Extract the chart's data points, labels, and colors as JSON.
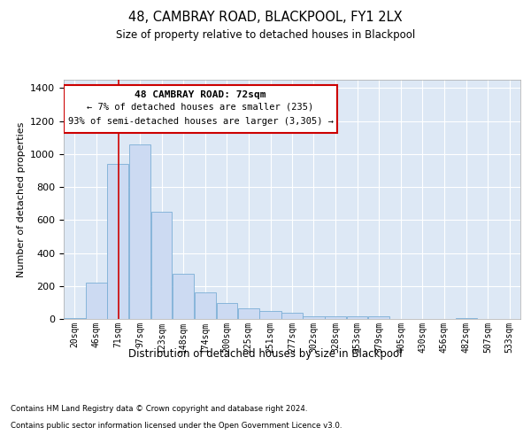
{
  "title1": "48, CAMBRAY ROAD, BLACKPOOL, FY1 2LX",
  "title2": "Size of property relative to detached houses in Blackpool",
  "xlabel": "Distribution of detached houses by size in Blackpool",
  "ylabel": "Number of detached properties",
  "footnote1": "Contains HM Land Registry data © Crown copyright and database right 2024.",
  "footnote2": "Contains public sector information licensed under the Open Government Licence v3.0.",
  "annotation_title": "48 CAMBRAY ROAD: 72sqm",
  "annotation_line2": "← 7% of detached houses are smaller (235)",
  "annotation_line3": "93% of semi-detached houses are larger (3,305) →",
  "bar_color": "#ccdaf2",
  "bar_edge_color": "#7baed6",
  "vline_color": "#cc0000",
  "background_color": "#dde8f5",
  "categories": [
    "20sqm",
    "46sqm",
    "71sqm",
    "97sqm",
    "123sqm",
    "148sqm",
    "174sqm",
    "200sqm",
    "225sqm",
    "251sqm",
    "277sqm",
    "302sqm",
    "328sqm",
    "353sqm",
    "379sqm",
    "405sqm",
    "430sqm",
    "456sqm",
    "482sqm",
    "507sqm",
    "533sqm"
  ],
  "bin_edges": [
    7,
    33,
    58,
    84,
    110,
    135,
    161,
    187,
    212,
    238,
    264,
    289,
    315,
    341,
    366,
    392,
    418,
    443,
    469,
    495,
    520,
    546
  ],
  "values": [
    5,
    220,
    940,
    1060,
    650,
    275,
    160,
    95,
    65,
    50,
    35,
    15,
    15,
    15,
    15,
    0,
    0,
    0,
    5,
    0,
    0
  ],
  "ylim": [
    0,
    1450
  ],
  "yticks": [
    0,
    200,
    400,
    600,
    800,
    1000,
    1200,
    1400
  ],
  "vline_x_data": 72
}
